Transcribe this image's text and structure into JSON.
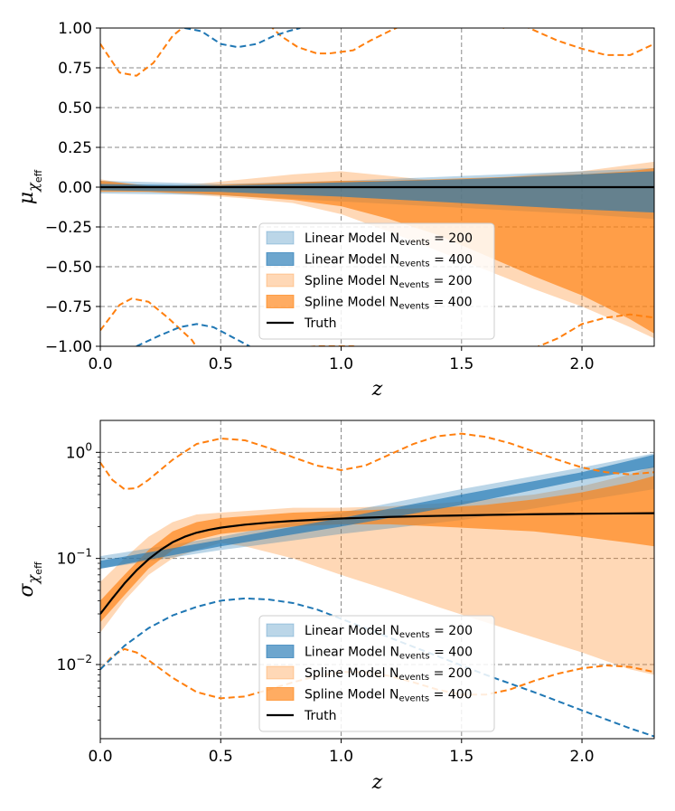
{
  "chart_data": [
    {
      "type": "area",
      "panel": "top",
      "ylabel_main": "μ",
      "ylabel_sub": "χ",
      "ylabel_subsub": "eff",
      "xlabel": "z",
      "xlim": [
        0.0,
        2.3
      ],
      "ylim": [
        -1.0,
        1.0
      ],
      "yscale": "linear",
      "grid": true,
      "xticks": [
        0.0,
        0.5,
        1.0,
        1.5,
        2.0
      ],
      "xtick_labels": [
        "0.0",
        "0.5",
        "1.0",
        "1.5",
        "2.0"
      ],
      "yticks": [
        1.0,
        0.75,
        0.5,
        0.25,
        0.0,
        -0.25,
        -0.5,
        -0.75,
        -1.0
      ],
      "ytick_labels": [
        "1.00",
        "0.75",
        "0.50",
        "0.25",
        "0.00",
        "−0.25",
        "−0.50",
        "−0.75",
        "−1.00"
      ],
      "legend_position": "lower-center",
      "legend": [
        {
          "label": "Linear Model N",
          "sub": "events",
          "value": " = 200",
          "color": "#1f77b4",
          "alpha": 0.3,
          "kind": "band"
        },
        {
          "label": "Linear Model N",
          "sub": "events",
          "value": " = 400",
          "color": "#1f77b4",
          "alpha": 0.65,
          "kind": "band"
        },
        {
          "label": "Spline Model N",
          "sub": "events",
          "value": " = 200",
          "color": "#ff7f0e",
          "alpha": 0.3,
          "kind": "band"
        },
        {
          "label": "Spline Model N",
          "sub": "events",
          "value": " = 400",
          "color": "#ff7f0e",
          "alpha": 0.65,
          "kind": "band"
        },
        {
          "label": "Truth",
          "color": "#000000",
          "kind": "line"
        }
      ],
      "series": [
        {
          "name": "Spline Model N=200",
          "color": "#ff7f0e",
          "alpha": 0.3,
          "x": [
            0.0,
            0.2,
            0.4,
            0.6,
            0.8,
            1.0,
            1.2,
            1.4,
            1.6,
            1.8,
            2.0,
            2.2,
            2.3
          ],
          "lower": [
            -0.02,
            -0.03,
            -0.05,
            -0.07,
            -0.1,
            -0.17,
            -0.28,
            -0.4,
            -0.52,
            -0.64,
            -0.75,
            -0.88,
            -0.95
          ],
          "upper": [
            0.05,
            0.0,
            0.02,
            0.05,
            0.08,
            0.1,
            0.07,
            0.04,
            0.05,
            0.08,
            0.1,
            0.14,
            0.16
          ]
        },
        {
          "name": "Linear Model N=200",
          "color": "#1f77b4",
          "alpha": 0.3,
          "x": [
            0.0,
            0.5,
            1.0,
            1.5,
            2.0,
            2.3
          ],
          "lower": [
            -0.04,
            -0.05,
            -0.09,
            -0.13,
            -0.17,
            -0.2
          ],
          "upper": [
            0.04,
            0.02,
            0.04,
            0.07,
            0.1,
            0.12
          ]
        },
        {
          "name": "Spline Model N=400",
          "color": "#ff7f0e",
          "alpha": 0.65,
          "x": [
            0.0,
            0.2,
            0.4,
            0.6,
            0.8,
            1.0,
            1.2,
            1.4,
            1.6,
            1.8,
            2.0,
            2.2,
            2.3
          ],
          "lower": [
            -0.03,
            -0.03,
            -0.04,
            -0.06,
            -0.08,
            -0.12,
            -0.2,
            -0.3,
            -0.43,
            -0.56,
            -0.68,
            -0.83,
            -0.92
          ],
          "upper": [
            0.04,
            0.01,
            0.01,
            0.02,
            0.03,
            0.04,
            0.04,
            0.05,
            0.06,
            0.07,
            0.08,
            0.1,
            0.12
          ]
        },
        {
          "name": "Linear Model N=400",
          "color": "#1f77b4",
          "alpha": 0.65,
          "x": [
            0.0,
            0.5,
            1.0,
            1.5,
            2.0,
            2.3
          ],
          "lower": [
            -0.02,
            -0.03,
            -0.06,
            -0.1,
            -0.14,
            -0.16
          ],
          "upper": [
            0.02,
            0.01,
            0.03,
            0.05,
            0.08,
            0.1
          ]
        }
      ],
      "lines": [
        {
          "name": "Truth",
          "color": "#000000",
          "dash": false,
          "x": [
            0.0,
            2.3
          ],
          "y": [
            0.0,
            0.0
          ]
        },
        {
          "name": "Spline prior upper",
          "color": "#ff7f0e",
          "dash": true,
          "x": [
            0.0,
            0.08,
            0.15,
            0.22,
            0.3,
            0.38,
            0.42,
            0.45,
            0.55,
            0.68,
            0.75,
            0.82,
            0.9,
            0.95,
            1.05,
            1.12,
            1.2,
            1.3,
            1.4,
            1.5,
            1.6,
            1.68,
            1.72,
            1.78,
            1.9,
            2.0,
            2.1,
            2.2,
            2.3
          ],
          "y": [
            0.9,
            0.72,
            0.7,
            0.78,
            0.95,
            1.05,
            1.1,
            1.05,
            1.1,
            1.05,
            0.95,
            0.88,
            0.84,
            0.84,
            0.86,
            0.92,
            0.98,
            1.05,
            1.1,
            1.05,
            1.02,
            1.0,
            1.05,
            1.0,
            0.92,
            0.87,
            0.83,
            0.83,
            0.9
          ]
        },
        {
          "name": "Spline prior lower",
          "color": "#ff7f0e",
          "dash": true,
          "x": [
            0.0,
            0.08,
            0.13,
            0.2,
            0.28,
            0.38,
            0.42,
            0.5,
            0.6,
            0.7,
            0.9,
            1.0,
            1.05,
            1.15,
            1.3,
            1.5,
            1.65,
            1.75,
            1.82,
            1.9,
            2.0,
            2.1,
            2.2,
            2.3
          ],
          "y": [
            -0.9,
            -0.74,
            -0.7,
            -0.72,
            -0.82,
            -0.96,
            -1.05,
            -1.1,
            -1.05,
            -1.02,
            -1.0,
            -1.0,
            -1.0,
            -1.05,
            -1.08,
            -1.1,
            -1.08,
            -1.05,
            -1.0,
            -0.95,
            -0.86,
            -0.82,
            -0.8,
            -0.82
          ]
        },
        {
          "name": "Linear prior upper",
          "color": "#1f77b4",
          "dash": true,
          "x": [
            0.35,
            0.42,
            0.5,
            0.57,
            0.65,
            0.72,
            0.78,
            0.83
          ],
          "y": [
            1.0,
            0.98,
            0.9,
            0.88,
            0.9,
            0.95,
            0.98,
            1.0
          ]
        },
        {
          "name": "Linear prior lower",
          "color": "#1f77b4",
          "dash": true,
          "x": [
            0.15,
            0.25,
            0.33,
            0.4,
            0.47,
            0.52,
            0.57,
            0.62
          ],
          "y": [
            -1.0,
            -0.93,
            -0.88,
            -0.86,
            -0.88,
            -0.92,
            -0.96,
            -1.0
          ]
        }
      ]
    },
    {
      "type": "area",
      "panel": "bottom",
      "ylabel_main": "σ",
      "ylabel_sub": "χ",
      "ylabel_subsub": "eff",
      "xlabel": "z",
      "xlim": [
        0.0,
        2.3
      ],
      "ylim": [
        0.002,
        2.0
      ],
      "yscale": "log",
      "grid": true,
      "xticks": [
        0.0,
        0.5,
        1.0,
        1.5,
        2.0
      ],
      "xtick_labels": [
        "0.0",
        "0.5",
        "1.0",
        "1.5",
        "2.0"
      ],
      "yticks": [
        1.0,
        0.1,
        0.01
      ],
      "ytick_labels": [
        {
          "base": "10",
          "exp": "0"
        },
        {
          "base": "10",
          "exp": "−1"
        },
        {
          "base": "10",
          "exp": "−2"
        }
      ],
      "legend_position": "lower-center",
      "legend": [
        {
          "label": "Linear Model N",
          "sub": "events",
          "value": " = 200",
          "color": "#1f77b4",
          "alpha": 0.3,
          "kind": "band"
        },
        {
          "label": "Linear Model N",
          "sub": "events",
          "value": " = 400",
          "color": "#1f77b4",
          "alpha": 0.65,
          "kind": "band"
        },
        {
          "label": "Spline Model N",
          "sub": "events",
          "value": " = 200",
          "color": "#ff7f0e",
          "alpha": 0.3,
          "kind": "band"
        },
        {
          "label": "Spline Model N",
          "sub": "events",
          "value": " = 400",
          "color": "#ff7f0e",
          "alpha": 0.65,
          "kind": "band"
        },
        {
          "label": "Truth",
          "color": "#000000",
          "kind": "line"
        }
      ],
      "series": [
        {
          "name": "Spline Model N=200",
          "color": "#ff7f0e",
          "alpha": 0.3,
          "x": [
            0.0,
            0.1,
            0.2,
            0.3,
            0.4,
            0.5,
            0.6,
            0.8,
            1.0,
            1.2,
            1.4,
            1.6,
            1.8,
            2.0,
            2.2,
            2.3
          ],
          "lower": [
            0.02,
            0.04,
            0.07,
            0.1,
            0.12,
            0.14,
            0.13,
            0.1,
            0.07,
            0.05,
            0.035,
            0.025,
            0.018,
            0.013,
            0.009,
            0.008
          ],
          "upper": [
            0.06,
            0.1,
            0.16,
            0.22,
            0.26,
            0.27,
            0.28,
            0.3,
            0.3,
            0.31,
            0.33,
            0.36,
            0.4,
            0.48,
            0.62,
            0.75
          ]
        },
        {
          "name": "Linear Model N=200",
          "color": "#1f77b4",
          "alpha": 0.3,
          "x": [
            0.0,
            0.5,
            1.0,
            1.5,
            2.0,
            2.3
          ],
          "lower": [
            0.08,
            0.12,
            0.17,
            0.23,
            0.35,
            0.45
          ],
          "upper": [
            0.105,
            0.16,
            0.27,
            0.45,
            0.72,
            0.98
          ]
        },
        {
          "name": "Spline Model N=400",
          "color": "#ff7f0e",
          "alpha": 0.65,
          "x": [
            0.0,
            0.1,
            0.2,
            0.3,
            0.4,
            0.5,
            0.6,
            0.8,
            1.0,
            1.2,
            1.4,
            1.6,
            1.8,
            2.0,
            2.2,
            2.3
          ],
          "lower": [
            0.025,
            0.045,
            0.08,
            0.12,
            0.15,
            0.17,
            0.18,
            0.2,
            0.21,
            0.21,
            0.2,
            0.19,
            0.18,
            0.16,
            0.14,
            0.13
          ],
          "upper": [
            0.04,
            0.07,
            0.12,
            0.18,
            0.22,
            0.24,
            0.25,
            0.27,
            0.28,
            0.29,
            0.3,
            0.32,
            0.36,
            0.42,
            0.52,
            0.6
          ]
        },
        {
          "name": "Linear Model N=400",
          "color": "#1f77b4",
          "alpha": 0.65,
          "x": [
            0.0,
            0.5,
            1.0,
            1.5,
            2.0,
            2.3
          ],
          "lower": [
            0.08,
            0.13,
            0.2,
            0.32,
            0.55,
            0.72
          ],
          "upper": [
            0.095,
            0.15,
            0.24,
            0.4,
            0.65,
            0.95
          ]
        }
      ],
      "lines": [
        {
          "name": "Truth",
          "color": "#000000",
          "dash": false,
          "x": [
            0.0,
            0.05,
            0.1,
            0.15,
            0.2,
            0.25,
            0.3,
            0.35,
            0.4,
            0.45,
            0.5,
            0.6,
            0.7,
            0.8,
            0.9,
            1.0,
            1.2,
            1.4,
            1.6,
            1.8,
            2.0,
            2.2,
            2.3
          ],
          "y": [
            0.03,
            0.042,
            0.058,
            0.077,
            0.098,
            0.12,
            0.142,
            0.16,
            0.175,
            0.186,
            0.195,
            0.208,
            0.218,
            0.226,
            0.232,
            0.238,
            0.246,
            0.252,
            0.257,
            0.261,
            0.264,
            0.266,
            0.267
          ]
        },
        {
          "name": "Spline prior upper",
          "color": "#ff7f0e",
          "dash": true,
          "x": [
            0.0,
            0.05,
            0.1,
            0.15,
            0.2,
            0.3,
            0.4,
            0.5,
            0.6,
            0.7,
            0.8,
            0.9,
            1.0,
            1.1,
            1.2,
            1.3,
            1.4,
            1.5,
            1.6,
            1.7,
            1.8,
            1.9,
            2.0,
            2.1,
            2.2,
            2.3
          ],
          "y": [
            0.8,
            0.55,
            0.45,
            0.46,
            0.55,
            0.85,
            1.2,
            1.35,
            1.3,
            1.1,
            0.9,
            0.75,
            0.68,
            0.75,
            0.95,
            1.2,
            1.42,
            1.5,
            1.4,
            1.22,
            1.02,
            0.85,
            0.72,
            0.65,
            0.62,
            0.65
          ]
        },
        {
          "name": "Spline prior lower",
          "color": "#ff7f0e",
          "dash": true,
          "x": [
            0.0,
            0.05,
            0.1,
            0.15,
            0.2,
            0.3,
            0.4,
            0.5,
            0.6,
            0.7,
            0.8,
            0.9,
            1.0,
            1.1,
            1.2,
            1.3,
            1.4,
            1.5,
            1.6,
            1.7,
            1.8,
            1.9,
            2.0,
            2.1,
            2.2,
            2.3
          ],
          "y": [
            0.009,
            0.012,
            0.014,
            0.013,
            0.011,
            0.0075,
            0.0055,
            0.0048,
            0.005,
            0.0058,
            0.0068,
            0.0078,
            0.0085,
            0.0085,
            0.0078,
            0.0068,
            0.0058,
            0.0052,
            0.0052,
            0.0058,
            0.007,
            0.0082,
            0.0092,
            0.0098,
            0.0095,
            0.0085
          ]
        },
        {
          "name": "Linear prior lower",
          "color": "#1f77b4",
          "dash": true,
          "x": [
            0.0,
            0.1,
            0.2,
            0.3,
            0.4,
            0.5,
            0.6,
            0.7,
            0.8,
            0.9,
            1.0,
            1.2,
            1.4,
            1.6,
            1.8,
            2.0,
            2.2,
            2.3
          ],
          "y": [
            0.009,
            0.015,
            0.022,
            0.029,
            0.035,
            0.04,
            0.042,
            0.041,
            0.038,
            0.033,
            0.027,
            0.018,
            0.012,
            0.008,
            0.0055,
            0.0037,
            0.0025,
            0.0021
          ]
        }
      ]
    }
  ]
}
